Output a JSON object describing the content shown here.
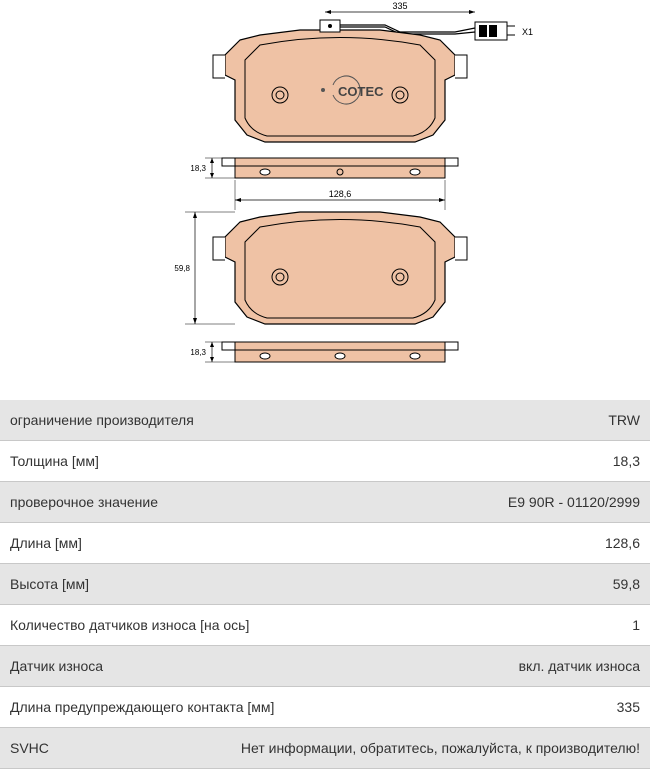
{
  "diagram": {
    "pad_fill": "#efc2a5",
    "plate_fill": "#efc2a5",
    "stroke": "#000000",
    "stroke_width": 1,
    "dim_top_wire": "335",
    "dim_connector": "X1",
    "dim_thickness": "18,3",
    "dim_width": "128,6",
    "dim_height": "59,8",
    "brand": "COTEC",
    "text_size": 9
  },
  "specs": [
    {
      "label": "ограничение производителя",
      "value": "TRW",
      "shaded": true
    },
    {
      "label": "Толщина [мм]",
      "value": "18,3",
      "shaded": false
    },
    {
      "label": "проверочное значение",
      "value": "E9 90R - 01120/2999",
      "shaded": true
    },
    {
      "label": "Длина [мм]",
      "value": "128,6",
      "shaded": false
    },
    {
      "label": "Высота [мм]",
      "value": "59,8",
      "shaded": true
    },
    {
      "label": "Количество датчиков износа [на ось]",
      "value": "1",
      "shaded": false
    },
    {
      "label": "Датчик износа",
      "value": "вкл. датчик износа",
      "shaded": true
    },
    {
      "label": "Длина предупреждающего контакта [мм]",
      "value": "335",
      "shaded": false
    },
    {
      "label": "SVHC",
      "value": "Нет информации, обратитесь, пожалуйста, к производителю!",
      "shaded": true
    }
  ]
}
